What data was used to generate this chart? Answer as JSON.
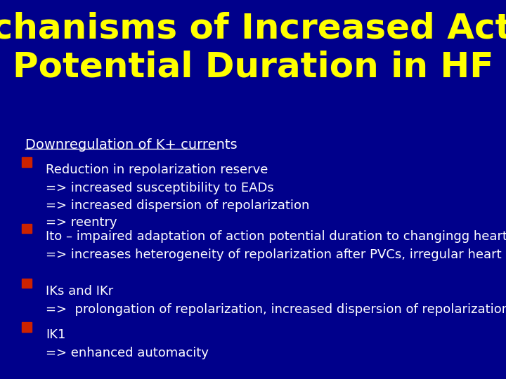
{
  "title_line1": "Mechanisms of Increased Action",
  "title_line2": "Potential Duration in HF",
  "title_color": "#FFFF00",
  "title_fontsize": 36,
  "background_color": "#00008B",
  "subtitle": "Downregulation of K+ currents",
  "subtitle_color": "#FFFFFF",
  "subtitle_fontsize": 14,
  "bullet_color": "#CC2200",
  "text_color": "#FFFFFF",
  "body_fontsize": 13,
  "bullets": [
    {
      "main": "Reduction in repolarization reserve",
      "sub": "=> increased susceptibility to EADs\n=> increased dispersion of repolarization\n=> reentry"
    },
    {
      "main": "Ito – impaired adaptation of action potential duration to changingg heart rate",
      "sub": "=> increases heterogeneity of repolarization after PVCs, irregular heart rate"
    },
    {
      "main": "IKs and IKr",
      "sub": "=>  prolongation of repolarization, increased dispersion of repolarization"
    },
    {
      "main": "IK1",
      "sub": "=> enhanced automacity"
    }
  ]
}
